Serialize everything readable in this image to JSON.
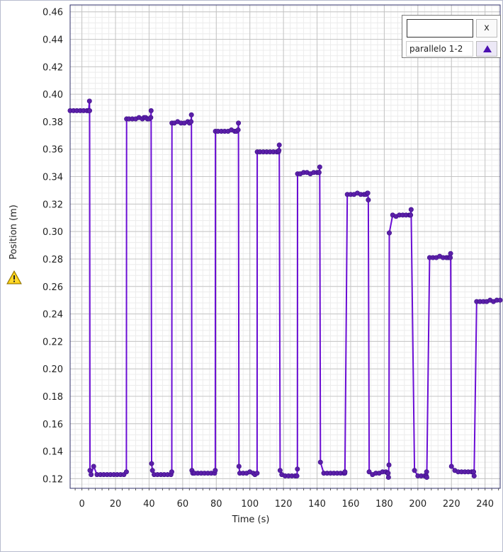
{
  "chart_data": {
    "type": "line",
    "xlabel": "Time (s)",
    "ylabel": "Position (m)",
    "xlim": [
      -7,
      249
    ],
    "ylim": [
      0.113,
      0.465
    ],
    "grid": true,
    "legend_position": "top-right",
    "xticks": [
      0,
      20,
      40,
      60,
      80,
      100,
      120,
      140,
      160,
      180,
      200,
      220,
      240
    ],
    "yticks": [
      0.12,
      0.14,
      0.16,
      0.18,
      0.2,
      0.22,
      0.24,
      0.26,
      0.28,
      0.3,
      0.32,
      0.34,
      0.36,
      0.38,
      0.4,
      0.42,
      0.44,
      0.46
    ],
    "series": [
      {
        "name": "parallelo 1-2",
        "color": "#6a0dd4",
        "marker_color": "#5b1fa8",
        "x": [
          -7,
          -5,
          -3,
          -1,
          1,
          3,
          4,
          4.5,
          4.6,
          4.8,
          5.5,
          7,
          9,
          11,
          13,
          15,
          17,
          19,
          21,
          23,
          25,
          26.5,
          26.6,
          28,
          30,
          32,
          34,
          36,
          37,
          38,
          39,
          40,
          41,
          41.2,
          41.5,
          42,
          43,
          45,
          47,
          49,
          51,
          53,
          53.5,
          53.6,
          55,
          57,
          59,
          61,
          63,
          64,
          65,
          65.2,
          65.5,
          66,
          67,
          69,
          71,
          73,
          75,
          77,
          79,
          79.4,
          79.5,
          81,
          83,
          85,
          87,
          89,
          91,
          92,
          93,
          93.2,
          93.5,
          94,
          96,
          98,
          100,
          102,
          103,
          104.3,
          104.4,
          106,
          108,
          110,
          112,
          114,
          116,
          117,
          117.3,
          117.5,
          118,
          119,
          121,
          123,
          125,
          127,
          128,
          128.3,
          128.4,
          130,
          132,
          134,
          136,
          138,
          140,
          141,
          141.2,
          141.6,
          142,
          144,
          146,
          148,
          150,
          152,
          154,
          156,
          156.5,
          156.6,
          158,
          160,
          162,
          164,
          166,
          168,
          169,
          170,
          170.2,
          170.5,
          171,
          173,
          175,
          177,
          179,
          181,
          182,
          182.3,
          182.5,
          182.8,
          183,
          185,
          187,
          189,
          191,
          193,
          195,
          195.5,
          195.7,
          196,
          198,
          200,
          202,
          204,
          205,
          205.2,
          205.3,
          207,
          209,
          211,
          213,
          215,
          217,
          218,
          219,
          219.3,
          219.5,
          220,
          222,
          224,
          226,
          228,
          230,
          232,
          233,
          233.2,
          233.5,
          235,
          237,
          239,
          241,
          243,
          245,
          247,
          249
        ],
        "y": [
          0.388,
          0.388,
          0.388,
          0.388,
          0.388,
          0.388,
          0.388,
          0.395,
          0.388,
          0.126,
          0.123,
          0.129,
          0.123,
          0.123,
          0.123,
          0.123,
          0.123,
          0.123,
          0.123,
          0.123,
          0.123,
          0.125,
          0.382,
          0.382,
          0.382,
          0.382,
          0.383,
          0.382,
          0.383,
          0.383,
          0.382,
          0.382,
          0.383,
          0.388,
          0.131,
          0.126,
          0.123,
          0.123,
          0.123,
          0.123,
          0.123,
          0.123,
          0.125,
          0.379,
          0.379,
          0.38,
          0.379,
          0.379,
          0.38,
          0.379,
          0.38,
          0.385,
          0.126,
          0.124,
          0.124,
          0.124,
          0.124,
          0.124,
          0.124,
          0.124,
          0.124,
          0.126,
          0.373,
          0.373,
          0.373,
          0.373,
          0.373,
          0.374,
          0.373,
          0.373,
          0.374,
          0.379,
          0.129,
          0.124,
          0.124,
          0.124,
          0.125,
          0.124,
          0.123,
          0.124,
          0.358,
          0.358,
          0.358,
          0.358,
          0.358,
          0.358,
          0.358,
          0.358,
          0.359,
          0.363,
          0.126,
          0.123,
          0.122,
          0.122,
          0.122,
          0.122,
          0.122,
          0.127,
          0.342,
          0.342,
          0.343,
          0.343,
          0.342,
          0.343,
          0.343,
          0.343,
          0.343,
          0.347,
          0.132,
          0.124,
          0.124,
          0.124,
          0.124,
          0.124,
          0.124,
          0.124,
          0.124,
          0.125,
          0.327,
          0.327,
          0.327,
          0.328,
          0.327,
          0.327,
          0.327,
          0.328,
          0.328,
          0.323,
          0.125,
          0.123,
          0.124,
          0.124,
          0.125,
          0.125,
          0.124,
          0.124,
          0.121,
          0.13,
          0.299,
          0.312,
          0.311,
          0.312,
          0.312,
          0.312,
          0.312,
          0.312,
          0.312,
          0.316,
          0.126,
          0.122,
          0.122,
          0.122,
          0.122,
          0.125,
          0.121,
          0.281,
          0.281,
          0.281,
          0.282,
          0.281,
          0.281,
          0.281,
          0.281,
          0.281,
          0.284,
          0.129,
          0.126,
          0.125,
          0.125,
          0.125,
          0.125,
          0.125,
          0.125,
          0.125,
          0.122,
          0.249,
          0.249,
          0.249,
          0.249,
          0.25,
          0.249,
          0.25,
          0.25
        ]
      }
    ]
  },
  "legend": {
    "title_value": "",
    "close_label": "x",
    "series_label": "parallelo 1-2"
  },
  "warning_icon": "warning-triangle-icon"
}
